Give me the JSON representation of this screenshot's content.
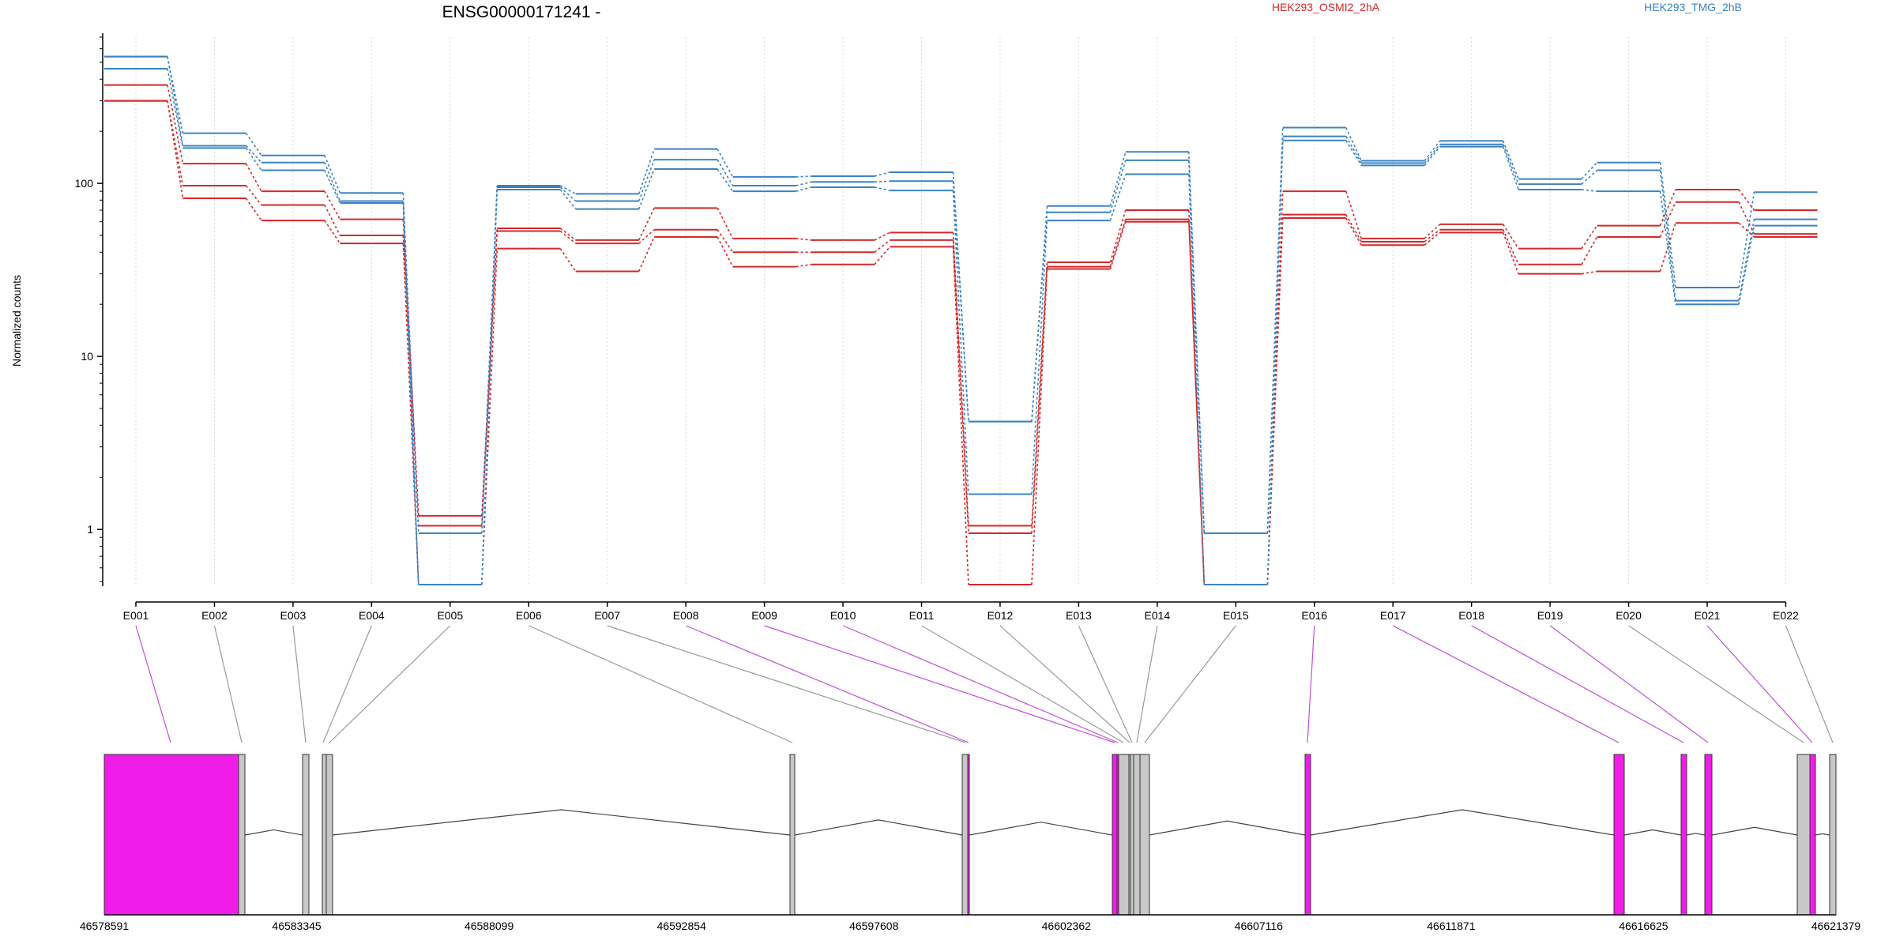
{
  "chart_data": {
    "type": "line",
    "title": "ENSG00000171241 -",
    "ylabel": "Normalized counts",
    "yscale": "log",
    "ylim": [
      0.48,
      700
    ],
    "yticks": [
      {
        "value": 1,
        "label": "1"
      },
      {
        "value": 10,
        "label": "10"
      },
      {
        "value": 100,
        "label": "100"
      }
    ],
    "categories": [
      "E001",
      "E002",
      "E003",
      "E004",
      "E005",
      "E006",
      "E007",
      "E008",
      "E009",
      "E010",
      "E011",
      "E012",
      "E013",
      "E014",
      "E015",
      "E016",
      "E017",
      "E018",
      "E019",
      "E020",
      "E021",
      "E022"
    ],
    "legend": [
      {
        "name": "HEK293_OSMI2_2hA",
        "color": "#d62728"
      },
      {
        "name": "HEK293_TMG_2hB",
        "color": "#3b82c4"
      }
    ],
    "series": [
      {
        "group": "HEK293_OSMI2_2hA",
        "color": "#d62728",
        "values": [
          370,
          130,
          90,
          62,
          1.2,
          55,
          47,
          72,
          48,
          47,
          52,
          1.05,
          35,
          70,
          0.48,
          90,
          48,
          58,
          42,
          57,
          92,
          70
        ]
      },
      {
        "group": "HEK293_OSMI2_2hA",
        "color": "#d62728",
        "values": [
          300,
          97,
          75,
          50,
          1.05,
          53,
          45,
          54,
          40,
          40,
          47,
          0.95,
          33,
          62,
          0.48,
          66,
          46,
          54,
          34,
          49,
          78,
          51
        ]
      },
      {
        "group": "HEK293_OSMI2_2hA",
        "color": "#d62728",
        "values": [
          300,
          82,
          61,
          45,
          0.48,
          42,
          31,
          49,
          33,
          34,
          43,
          0.48,
          32,
          60,
          0.48,
          63,
          44,
          52,
          30,
          31,
          59,
          49
        ]
      },
      {
        "group": "HEK293_TMG_2hB",
        "color": "#3b82c4",
        "values": [
          540,
          195,
          145,
          88,
          0.95,
          97,
          87,
          158,
          109,
          110,
          116,
          4.2,
          74,
          152,
          0.95,
          210,
          135,
          176,
          106,
          132,
          25,
          89
        ]
      },
      {
        "group": "HEK293_TMG_2hB",
        "color": "#3b82c4",
        "values": [
          540,
          165,
          132,
          79,
          0.48,
          95,
          79,
          137,
          97,
          102,
          103,
          4.2,
          68,
          136,
          0.95,
          187,
          131,
          168,
          99,
          119,
          21,
          62
        ]
      },
      {
        "group": "HEK293_TMG_2hB",
        "color": "#3b82c4",
        "values": [
          460,
          160,
          119,
          77,
          0.48,
          92,
          71,
          121,
          90,
          95,
          91,
          1.6,
          61,
          113,
          0.48,
          177,
          127,
          163,
          92,
          90,
          20,
          57
        ]
      }
    ],
    "gene_model": {
      "genomic_ticks": [
        "46578591",
        "46583345",
        "46588099",
        "46592854",
        "46597608",
        "46602362",
        "46607116",
        "46611871",
        "46616625",
        "46621379"
      ],
      "highlight_color": "#f01de8",
      "plain_color": "#c8c8c8",
      "exon_highlight": [
        true,
        false,
        false,
        false,
        false,
        false,
        false,
        true,
        true,
        true,
        false,
        false,
        false,
        false,
        false,
        true,
        true,
        true,
        true,
        false,
        true,
        false
      ]
    }
  }
}
